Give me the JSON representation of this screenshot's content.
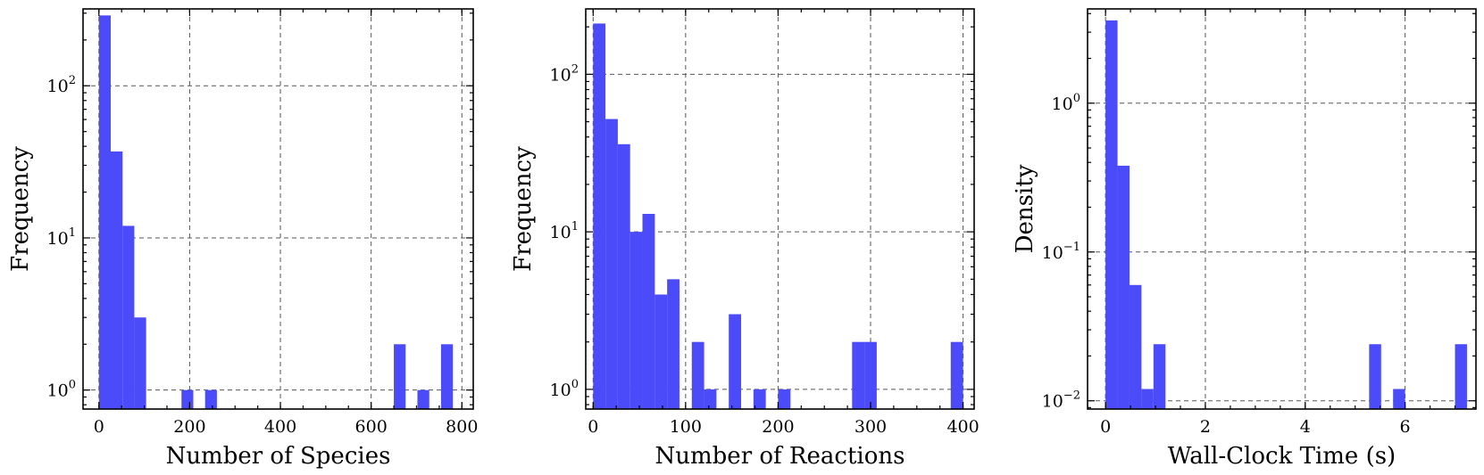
{
  "chart_data": [
    {
      "type": "bar",
      "subtype": "histogram",
      "xlabel": "Number of Species",
      "ylabel": "Frequency",
      "yscale": "log",
      "xlim": [
        -35,
        825
      ],
      "ylim": [
        0.75,
        320
      ],
      "grid": true,
      "xticks": [
        0,
        200,
        400,
        600,
        800
      ],
      "xtick_labels": [
        "0",
        "200",
        "400",
        "600",
        "800"
      ],
      "yticks": [
        1,
        10,
        100
      ],
      "ytick_labels": [
        [
          "10",
          "0"
        ],
        [
          "10",
          "1"
        ],
        [
          "10",
          "2"
        ]
      ],
      "bin_width": 26,
      "bins": [
        {
          "x0": 0,
          "value": 290
        },
        {
          "x0": 26,
          "value": 37
        },
        {
          "x0": 52,
          "value": 12
        },
        {
          "x0": 78,
          "value": 3
        },
        {
          "x0": 182,
          "value": 1
        },
        {
          "x0": 234,
          "value": 1
        },
        {
          "x0": 650,
          "value": 2
        },
        {
          "x0": 702,
          "value": 1
        },
        {
          "x0": 754,
          "value": 2
        }
      ]
    },
    {
      "type": "bar",
      "subtype": "histogram",
      "xlabel": "Number of Reactions",
      "ylabel": "Frequency",
      "yscale": "log",
      "xlim": [
        -8,
        412
      ],
      "ylim": [
        0.75,
        260
      ],
      "grid": true,
      "xticks": [
        0,
        100,
        200,
        300,
        400
      ],
      "xtick_labels": [
        "0",
        "100",
        "200",
        "300",
        "400"
      ],
      "yticks": [
        1,
        10,
        100
      ],
      "ytick_labels": [
        [
          "10",
          "0"
        ],
        [
          "10",
          "1"
        ],
        [
          "10",
          "2"
        ]
      ],
      "bin_width": 13.33,
      "bins": [
        {
          "x0": 0,
          "value": 210
        },
        {
          "x0": 13.33,
          "value": 52
        },
        {
          "x0": 26.67,
          "value": 36
        },
        {
          "x0": 40,
          "value": 10
        },
        {
          "x0": 53.33,
          "value": 13
        },
        {
          "x0": 66.67,
          "value": 4
        },
        {
          "x0": 80,
          "value": 5
        },
        {
          "x0": 106.67,
          "value": 2
        },
        {
          "x0": 120,
          "value": 1
        },
        {
          "x0": 146.67,
          "value": 3
        },
        {
          "x0": 173.33,
          "value": 1
        },
        {
          "x0": 200,
          "value": 1
        },
        {
          "x0": 280,
          "value": 2
        },
        {
          "x0": 293.33,
          "value": 2
        },
        {
          "x0": 386.67,
          "value": 2
        }
      ]
    },
    {
      "type": "bar",
      "subtype": "histogram",
      "xlabel": "Wall-Clock Time (s)",
      "ylabel": "Density",
      "yscale": "log",
      "xlim": [
        -0.36,
        7.42
      ],
      "ylim": [
        0.0088,
        4.3
      ],
      "grid": true,
      "xticks": [
        0,
        2,
        4,
        6
      ],
      "xtick_labels": [
        "0",
        "2",
        "4",
        "6"
      ],
      "yticks": [
        0.01,
        0.1,
        1
      ],
      "ytick_labels": [
        [
          "10",
          "−2"
        ],
        [
          "10",
          "−1"
        ],
        [
          "10",
          "0"
        ]
      ],
      "bin_width": 0.24,
      "bins": [
        {
          "x0": 0,
          "value": 3.6
        },
        {
          "x0": 0.24,
          "value": 0.38
        },
        {
          "x0": 0.48,
          "value": 0.06
        },
        {
          "x0": 0.72,
          "value": 0.012
        },
        {
          "x0": 0.96,
          "value": 0.024
        },
        {
          "x0": 5.28,
          "value": 0.024
        },
        {
          "x0": 5.76,
          "value": 0.012
        },
        {
          "x0": 7.0,
          "value": 0.024
        }
      ]
    }
  ]
}
